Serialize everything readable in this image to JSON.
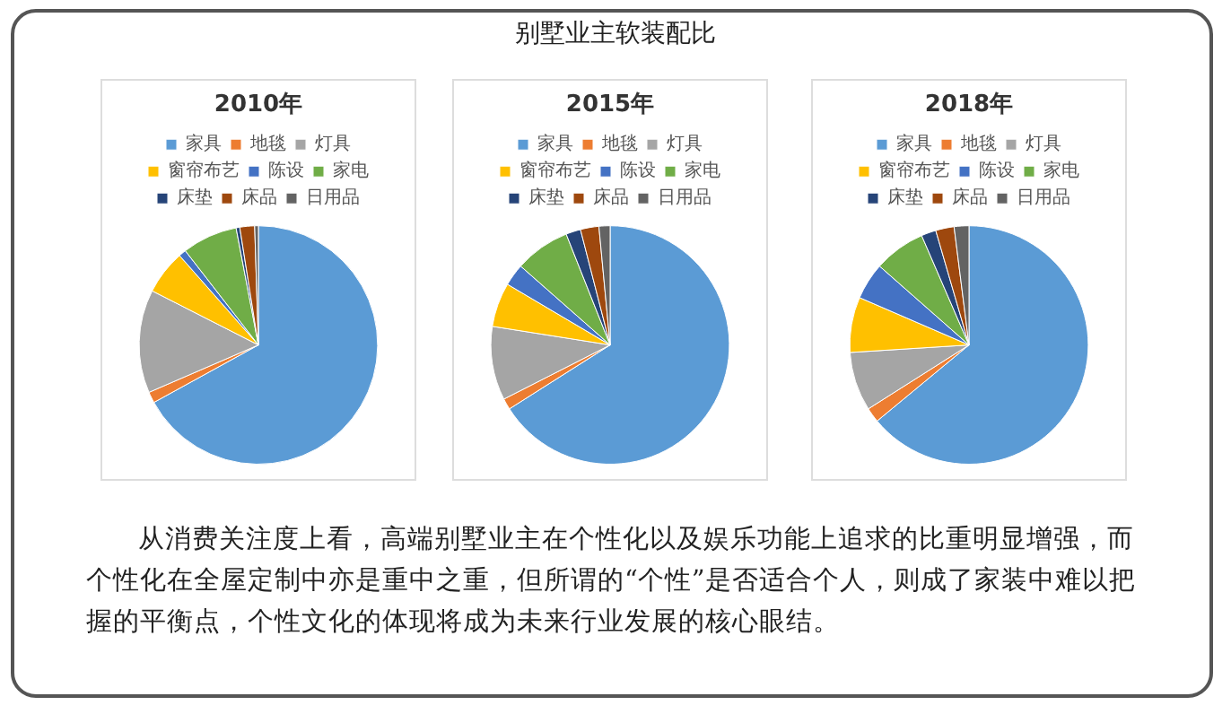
{
  "chart_data": [
    {
      "type": "other",
      "title": "别墅业主软装配比",
      "annotations": [
        "从消费关注度上看，高端别墅业主在个性化以及娱乐功能上追求的比重明显增强，而个性化在全屋定制中亦是重中之重，但所谓的“个性”是否适合个人，则成了家装中难以把握的平衡点，个性文化的体现将成为未来行业发展的核心眼结。"
      ]
    },
    {
      "type": "pie",
      "title": "2010年",
      "legend": "top",
      "categories": [
        "家具",
        "地毯",
        "灯具",
        "窗帘布艺",
        "陈设",
        "家电",
        "床垫",
        "床品",
        "日用品"
      ],
      "values": [
        67,
        1.5,
        14,
        6,
        1,
        7.5,
        0.5,
        2,
        0.5
      ],
      "colors": [
        "#5b9bd5",
        "#ed7d31",
        "#a5a5a5",
        "#ffc000",
        "#4472c4",
        "#70ad47",
        "#264478",
        "#9e480e",
        "#636363"
      ]
    },
    {
      "type": "pie",
      "title": "2015年",
      "legend": "top",
      "categories": [
        "家具",
        "地毯",
        "灯具",
        "窗帘布艺",
        "陈设",
        "家电",
        "床垫",
        "床品",
        "日用品"
      ],
      "values": [
        66,
        1.5,
        10,
        6,
        3,
        7.5,
        2,
        2.5,
        1.5
      ],
      "colors": [
        "#5b9bd5",
        "#ed7d31",
        "#a5a5a5",
        "#ffc000",
        "#4472c4",
        "#70ad47",
        "#264478",
        "#9e480e",
        "#636363"
      ]
    },
    {
      "type": "pie",
      "title": "2018年",
      "legend": "top",
      "categories": [
        "家具",
        "地毯",
        "灯具",
        "窗帘布艺",
        "陈设",
        "家电",
        "床垫",
        "床品",
        "日用品"
      ],
      "values": [
        64,
        2,
        8,
        7.5,
        5,
        7,
        2,
        2.5,
        2
      ],
      "colors": [
        "#5b9bd5",
        "#ed7d31",
        "#a5a5a5",
        "#ffc000",
        "#4472c4",
        "#70ad47",
        "#264478",
        "#9e480e",
        "#636363"
      ]
    }
  ]
}
